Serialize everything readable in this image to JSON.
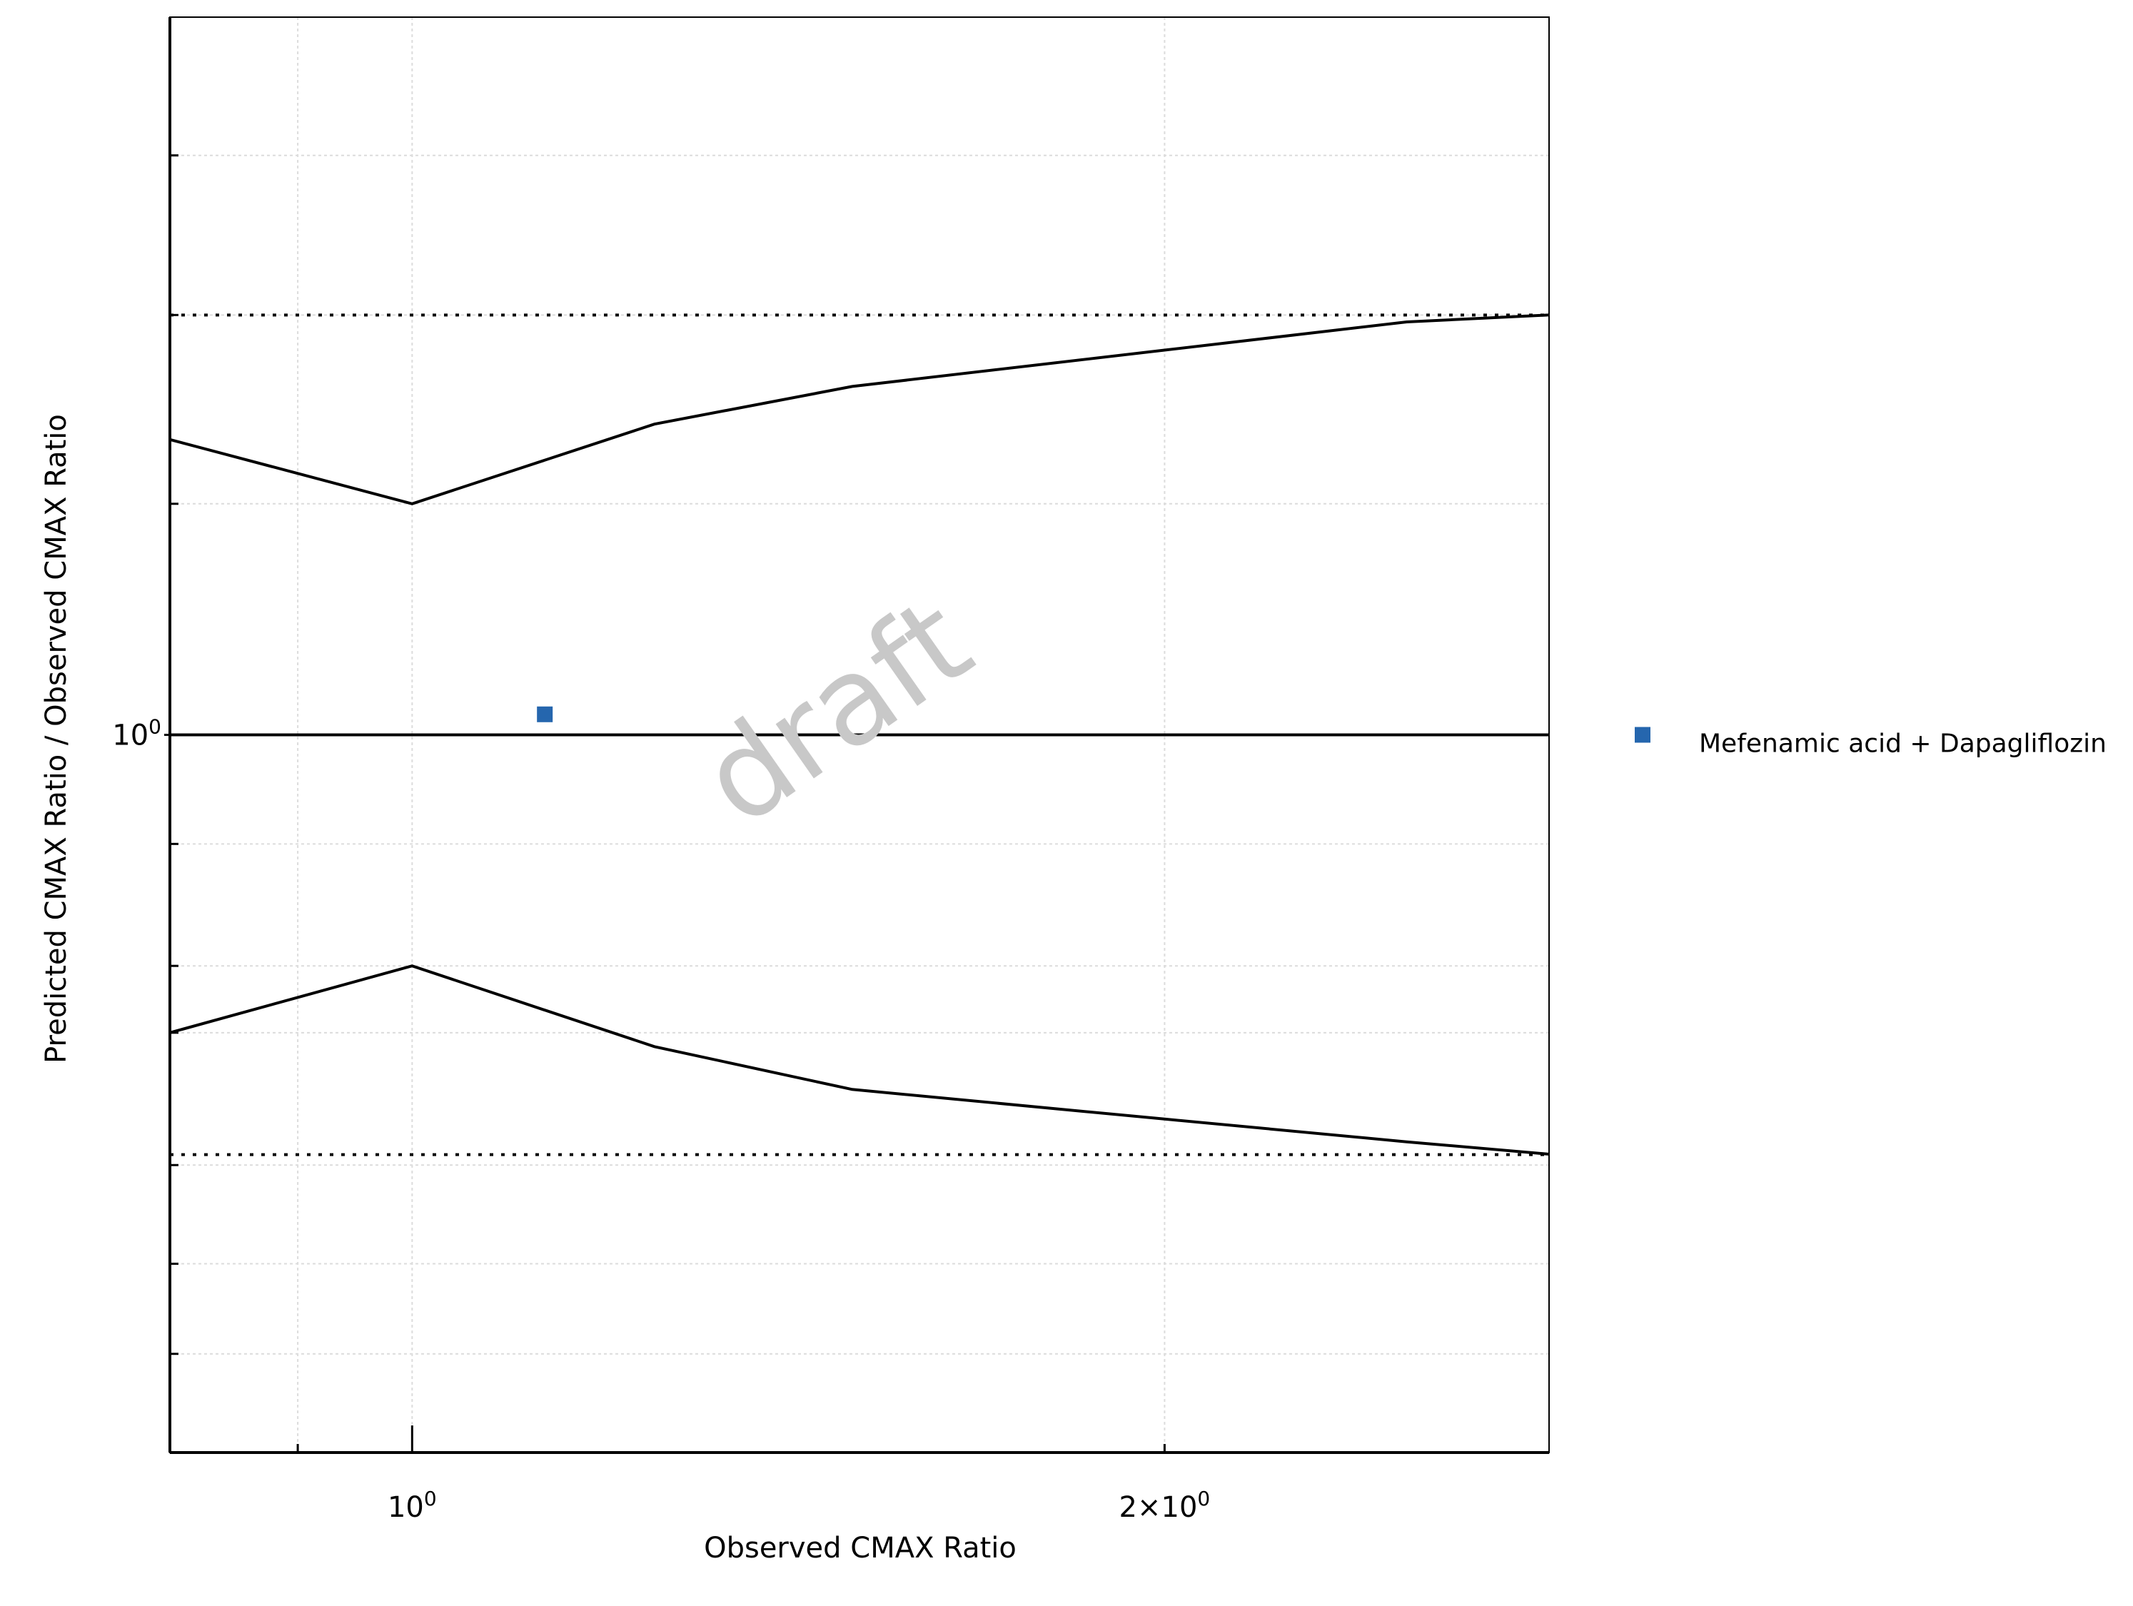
{
  "chart_data": {
    "type": "scatter",
    "title": "",
    "xlabel": "Observed CMAX Ratio",
    "ylabel": "Predicted CMAX Ratio / Observed CMAX Ratio",
    "x_scale": "log",
    "y_scale": "log",
    "xlim": [
      0.8,
      2.85
    ],
    "ylim": [
      0.5,
      2.0
    ],
    "x_ticks": [
      {
        "base": "10",
        "exp": "0",
        "value": 1.0
      },
      {
        "base": "2×10",
        "exp": "0",
        "value": 2.0
      }
    ],
    "y_ticks": [
      {
        "base": "10",
        "exp": "0",
        "value": 1.0
      }
    ],
    "x_minor_ticks": [
      0.9,
      3.0
    ],
    "y_minor_ticks": [
      0.55,
      0.6,
      0.66,
      0.75,
      0.8,
      0.9,
      1.25,
      1.5,
      1.75
    ],
    "series": [
      {
        "name": "Mefenamic acid + Dapagliflozin",
        "marker": "square",
        "color": "#2566ae",
        "points": [
          {
            "x": 1.13,
            "y": 1.02
          }
        ]
      }
    ],
    "reference_lines": {
      "identity": 1.0,
      "twofold_upper": 1.5,
      "twofold_lower": 0.6667
    },
    "guest_limits": {
      "upper": [
        [
          0.8,
          1.33
        ],
        [
          1.0,
          1.25
        ],
        [
          1.25,
          1.35
        ],
        [
          1.5,
          1.4
        ],
        [
          2.0,
          1.45
        ],
        [
          2.5,
          1.49
        ],
        [
          2.85,
          1.5
        ]
      ],
      "lower": [
        [
          0.8,
          0.75
        ],
        [
          1.0,
          0.8
        ],
        [
          1.25,
          0.74
        ],
        [
          1.5,
          0.71
        ],
        [
          2.0,
          0.69
        ],
        [
          2.5,
          0.675
        ],
        [
          2.85,
          0.667
        ]
      ]
    },
    "grid": true,
    "legend_position": "right",
    "watermark": "draft"
  }
}
